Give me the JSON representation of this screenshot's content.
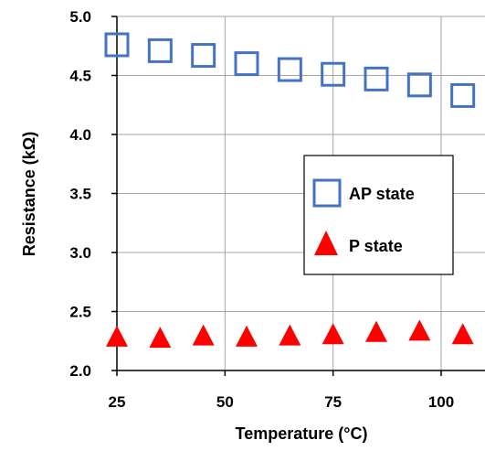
{
  "chart_data": {
    "type": "scatter",
    "xlabel": "Temperature (°C)",
    "ylabel": "Resistance (kΩ)",
    "xlim": [
      25,
      110
    ],
    "ylim": [
      2.0,
      5.0
    ],
    "xticks": [
      25,
      50,
      75,
      100
    ],
    "yticks": [
      2.0,
      2.5,
      3.0,
      3.5,
      4.0,
      4.5,
      5.0
    ],
    "xtick_labels": [
      "25",
      "50",
      "75",
      "100"
    ],
    "ytick_labels": [
      "2.0",
      "2.5",
      "3.0",
      "3.5",
      "4.0",
      "4.5",
      "5.0"
    ],
    "grid": true,
    "legend_position": "center-right",
    "series": [
      {
        "name": "AP state",
        "marker": "open-square",
        "color": "#4472C4",
        "x": [
          25,
          35,
          45,
          55,
          65,
          75,
          85,
          95,
          105
        ],
        "y": [
          4.76,
          4.71,
          4.67,
          4.6,
          4.55,
          4.51,
          4.47,
          4.42,
          4.33
        ]
      },
      {
        "name": "P state",
        "marker": "filled-triangle",
        "color": "#FF0000",
        "x": [
          25,
          35,
          45,
          55,
          65,
          75,
          85,
          95,
          105
        ],
        "y": [
          2.28,
          2.27,
          2.29,
          2.28,
          2.29,
          2.3,
          2.32,
          2.33,
          2.3
        ]
      }
    ]
  }
}
